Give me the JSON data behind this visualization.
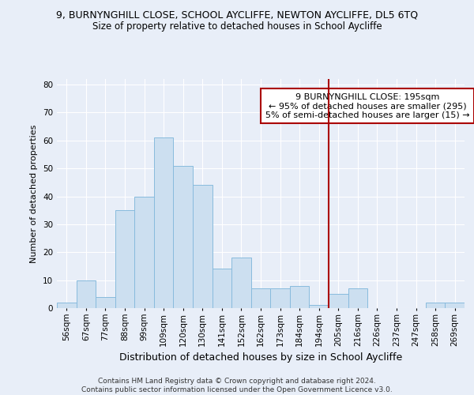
{
  "title1": "9, BURNYNGHILL CLOSE, SCHOOL AYCLIFFE, NEWTON AYCLIFFE, DL5 6TQ",
  "title2": "Size of property relative to detached houses in School Aycliffe",
  "xlabel": "Distribution of detached houses by size in School Aycliffe",
  "ylabel": "Number of detached properties",
  "footer1": "Contains HM Land Registry data © Crown copyright and database right 2024.",
  "footer2": "Contains public sector information licensed under the Open Government Licence v3.0.",
  "categories": [
    "56sqm",
    "67sqm",
    "77sqm",
    "88sqm",
    "99sqm",
    "109sqm",
    "120sqm",
    "130sqm",
    "141sqm",
    "152sqm",
    "162sqm",
    "173sqm",
    "184sqm",
    "194sqm",
    "205sqm",
    "216sqm",
    "226sqm",
    "237sqm",
    "247sqm",
    "258sqm",
    "269sqm"
  ],
  "values": [
    2,
    10,
    4,
    35,
    40,
    61,
    51,
    44,
    14,
    18,
    7,
    7,
    8,
    1,
    5,
    7,
    0,
    0,
    0,
    2,
    2
  ],
  "bar_color": "#ccdff0",
  "bar_edge_color": "#88bbdd",
  "vline_index": 13,
  "vline_color": "#aa0000",
  "annotation_text": "9 BURNYNGHILL CLOSE: 195sqm\n← 95% of detached houses are smaller (295)\n5% of semi-detached houses are larger (15) →",
  "annotation_box_facecolor": "#ffffff",
  "annotation_box_edgecolor": "#aa0000",
  "ylim": [
    0,
    82
  ],
  "yticks": [
    0,
    10,
    20,
    30,
    40,
    50,
    60,
    70,
    80
  ],
  "grid_color": "#ffffff",
  "background_color": "#e8eef8",
  "title1_fontsize": 9,
  "title2_fontsize": 8.5,
  "xlabel_fontsize": 9,
  "ylabel_fontsize": 8,
  "tick_fontsize": 7.5,
  "footer_fontsize": 6.5,
  "annotation_fontsize": 8
}
